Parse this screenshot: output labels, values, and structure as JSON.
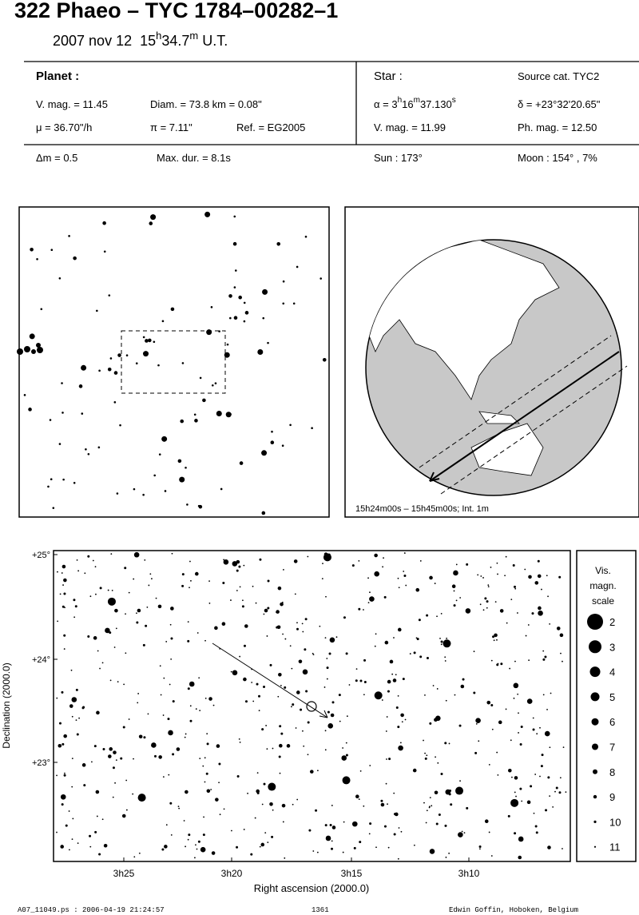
{
  "header": {
    "title": "322 Phaeo  –  TYC 1784–00282–1",
    "date": "2007 nov 12",
    "time_h": "15",
    "time_h_unit": "h",
    "time_m": "34.7",
    "time_m_unit": "m",
    "time_suffix": "U.T."
  },
  "planet": {
    "label": "Planet :",
    "vmag": "V. mag. = 11.45",
    "diam": "Diam. = 73.8 km = 0.08\"",
    "mu": "μ =  36.70\"/h",
    "parallax": "π =  7.11\"",
    "ref": "Ref. = EG2005",
    "dm": "Δm = 0.5",
    "maxdur": "Max. dur. = 8.1s"
  },
  "star": {
    "label": "Star :",
    "source": "Source cat.  TYC2",
    "alpha_prefix": "α =  3",
    "alpha_h": "h",
    "alpha_hv": "16",
    "alpha_m": "m",
    "alpha_mv": "37.130",
    "alpha_s": "s",
    "delta": "δ = +23°32'20.65\"",
    "vmag": "V. mag. = 11.99",
    "phmag": "Ph. mag. = 12.50",
    "sun": "Sun : 173°",
    "moon": "Moon : 154° ,  7%"
  },
  "globe": {
    "caption": "15h24m00s – 15h45m00s; Int.  1m"
  },
  "starchart": {
    "yticks": [
      "+25°",
      "+24°",
      "+23°"
    ],
    "xticks": [
      "3h25",
      "3h20",
      "3h15",
      "3h10"
    ],
    "ylabel": "Declination (2000.0)",
    "xlabel": "Right ascension (2000.0)",
    "scale_title": [
      "Vis.",
      "magn.",
      "scale"
    ],
    "scale_values": [
      2,
      3,
      4,
      5,
      6,
      7,
      8,
      9,
      10,
      11
    ]
  },
  "footer": {
    "file": "A07_11049.ps : 2006-04-19 21:24:57",
    "number": "1361",
    "author": "Edwin Goffin, Hoboken, Belgium"
  }
}
